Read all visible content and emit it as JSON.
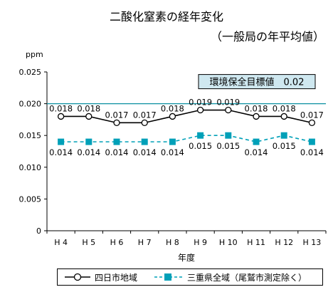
{
  "chart_data": {
    "type": "line",
    "title": "二酸化窒素の経年変化",
    "subtitle": "（一般局の年平均値）",
    "ylabel": "ppm",
    "xlabel": "年度",
    "categories": [
      "H 4",
      "H 5",
      "H 6",
      "H 7",
      "H 8",
      "H 9",
      "H 10",
      "H 11",
      "H 12",
      "H 13"
    ],
    "ylim": [
      0,
      0.025
    ],
    "yticks": [
      "0",
      "0.005",
      "0.010",
      "0.015",
      "0.020",
      "0.025"
    ],
    "series": [
      {
        "name": "四日市地域",
        "values": [
          0.018,
          0.018,
          0.017,
          0.017,
          0.018,
          0.019,
          0.019,
          0.018,
          0.018,
          0.017
        ],
        "labels": [
          "0.018",
          "0.018",
          "0.017",
          "0.017",
          "0.018",
          "0.019",
          "0.019",
          "0.018",
          "0.018",
          "0.017"
        ],
        "color": "#000000",
        "marker": "circle-open",
        "style": "solid"
      },
      {
        "name": "三重県全域（尾鷲市測定除く）",
        "values": [
          0.014,
          0.014,
          0.014,
          0.014,
          0.014,
          0.015,
          0.015,
          0.014,
          0.015,
          0.014
        ],
        "labels": [
          "0.014",
          "0.014",
          "0.014",
          "0.014",
          "0.014",
          "0.015",
          "0.015",
          "0.014",
          "0.015",
          "0.014"
        ],
        "color": "#00a0b8",
        "marker": "square-filled",
        "style": "dashed"
      }
    ],
    "reference_line": {
      "value": 0.02,
      "label": "環境保全目標値　0.02",
      "color": "#0a8fa0"
    },
    "grid": false,
    "legend_position": "bottom"
  }
}
